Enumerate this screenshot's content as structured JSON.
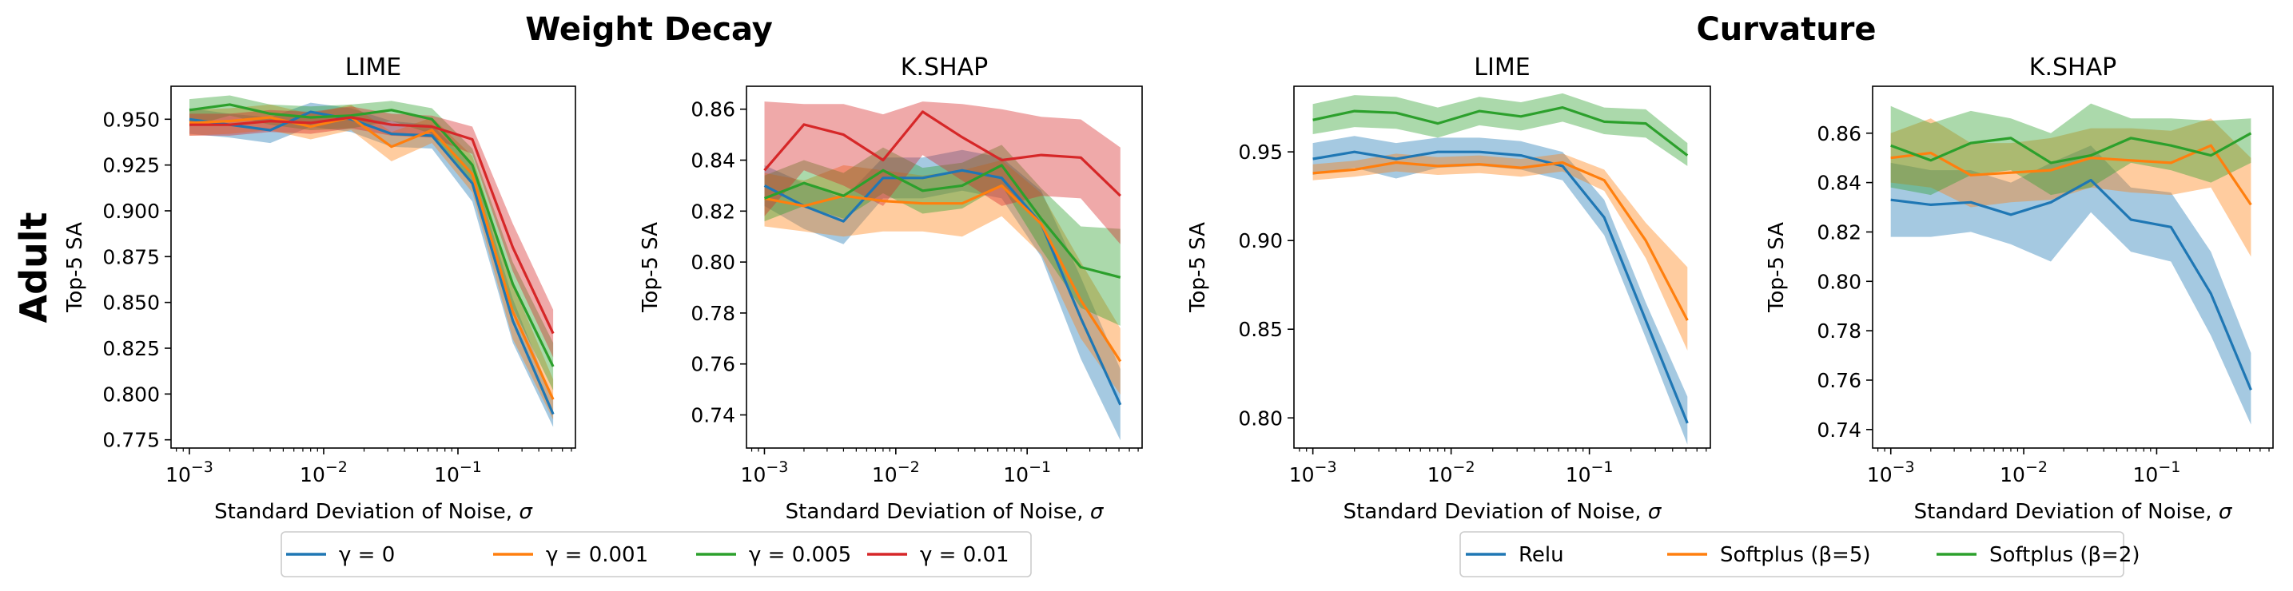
{
  "row_label": "Adult",
  "group_titles": [
    "Weight Decay",
    "Curvature"
  ],
  "legends": [
    {
      "entries": [
        {
          "label": "γ = 0",
          "color": "#1f77b4"
        },
        {
          "label": "γ = 0.001",
          "color": "#ff7f0e"
        },
        {
          "label": "γ = 0.005",
          "color": "#2ca02c"
        },
        {
          "label": "γ = 0.01",
          "color": "#d62728"
        }
      ]
    },
    {
      "entries": [
        {
          "label": "Relu",
          "color": "#1f77b4"
        },
        {
          "label": "Softplus (β=5)",
          "color": "#ff7f0e"
        },
        {
          "label": "Softplus (β=2)",
          "color": "#2ca02c"
        }
      ]
    }
  ],
  "chart_data": [
    {
      "type": "line",
      "group": "Weight Decay",
      "title": "LIME",
      "xlabel": "Standard Deviation of Noise, σ",
      "ylabel": "Top-5 SA",
      "xscale": "log",
      "xlim": [
        0.00073,
        0.75
      ],
      "ylim": [
        0.7705,
        0.968
      ],
      "x": [
        0.001,
        0.002,
        0.004,
        0.008,
        0.016,
        0.032,
        0.064,
        0.128,
        0.256,
        0.512
      ],
      "xticks": [
        0.001,
        0.01,
        0.1
      ],
      "xtick_labels": [
        "10−3",
        "10−2",
        "10−1"
      ],
      "yticks": [
        0.775,
        0.8,
        0.825,
        0.85,
        0.875,
        0.9,
        0.925,
        0.95
      ],
      "ytick_labels": [
        "0.775",
        "0.800",
        "0.825",
        "0.850",
        "0.875",
        "0.900",
        "0.925",
        "0.950"
      ],
      "series": [
        {
          "name": "γ = 0",
          "color": "#1f77b4",
          "values": [
            0.95,
            0.947,
            0.944,
            0.954,
            0.95,
            0.942,
            0.941,
            0.915,
            0.84,
            0.789
          ],
          "lower": [
            0.942,
            0.94,
            0.937,
            0.946,
            0.943,
            0.935,
            0.934,
            0.905,
            0.828,
            0.782
          ],
          "upper": [
            0.956,
            0.953,
            0.951,
            0.959,
            0.956,
            0.949,
            0.947,
            0.925,
            0.852,
            0.797
          ]
        },
        {
          "name": "γ = 0.001",
          "color": "#ff7f0e",
          "values": [
            0.948,
            0.949,
            0.951,
            0.946,
            0.951,
            0.935,
            0.944,
            0.92,
            0.845,
            0.797
          ],
          "lower": [
            0.941,
            0.942,
            0.944,
            0.939,
            0.944,
            0.927,
            0.937,
            0.91,
            0.83,
            0.786
          ],
          "upper": [
            0.955,
            0.956,
            0.958,
            0.953,
            0.958,
            0.943,
            0.951,
            0.93,
            0.86,
            0.808
          ]
        },
        {
          "name": "γ = 0.005",
          "color": "#2ca02c",
          "values": [
            0.955,
            0.958,
            0.953,
            0.951,
            0.952,
            0.955,
            0.95,
            0.925,
            0.86,
            0.815
          ],
          "lower": [
            0.946,
            0.952,
            0.947,
            0.944,
            0.945,
            0.949,
            0.942,
            0.915,
            0.847,
            0.802
          ],
          "upper": [
            0.961,
            0.963,
            0.958,
            0.957,
            0.958,
            0.96,
            0.956,
            0.934,
            0.872,
            0.828
          ]
        },
        {
          "name": "γ = 0.01",
          "color": "#d62728",
          "values": [
            0.947,
            0.947,
            0.949,
            0.948,
            0.951,
            0.947,
            0.946,
            0.939,
            0.88,
            0.833
          ],
          "lower": [
            0.941,
            0.941,
            0.943,
            0.942,
            0.945,
            0.941,
            0.94,
            0.931,
            0.867,
            0.82
          ],
          "upper": [
            0.953,
            0.953,
            0.955,
            0.954,
            0.957,
            0.953,
            0.952,
            0.946,
            0.893,
            0.846
          ]
        }
      ]
    },
    {
      "type": "line",
      "group": "Weight Decay",
      "title": "K.SHAP",
      "xlabel": "Standard Deviation of Noise, σ",
      "ylabel": "Top-5 SA",
      "xscale": "log",
      "xlim": [
        0.00073,
        0.75
      ],
      "ylim": [
        0.727,
        0.869
      ],
      "x": [
        0.001,
        0.002,
        0.004,
        0.008,
        0.016,
        0.032,
        0.064,
        0.128,
        0.256,
        0.512
      ],
      "xticks": [
        0.001,
        0.01,
        0.1
      ],
      "xtick_labels": [
        "10−3",
        "10−2",
        "10−1"
      ],
      "yticks": [
        0.74,
        0.76,
        0.78,
        0.8,
        0.82,
        0.84,
        0.86
      ],
      "ytick_labels": [
        "0.74",
        "0.76",
        "0.78",
        "0.80",
        "0.82",
        "0.84",
        "0.86"
      ],
      "series": [
        {
          "name": "γ = 0",
          "color": "#1f77b4",
          "values": [
            0.83,
            0.822,
            0.816,
            0.833,
            0.833,
            0.836,
            0.833,
            0.815,
            0.778,
            0.744
          ],
          "lower": [
            0.822,
            0.813,
            0.807,
            0.825,
            0.825,
            0.828,
            0.825,
            0.802,
            0.762,
            0.73
          ],
          "upper": [
            0.838,
            0.831,
            0.825,
            0.841,
            0.841,
            0.844,
            0.841,
            0.828,
            0.794,
            0.758
          ]
        },
        {
          "name": "γ = 0.001",
          "color": "#ff7f0e",
          "values": [
            0.825,
            0.822,
            0.826,
            0.824,
            0.823,
            0.823,
            0.83,
            0.815,
            0.785,
            0.761
          ],
          "lower": [
            0.814,
            0.812,
            0.81,
            0.812,
            0.812,
            0.81,
            0.818,
            0.803,
            0.77,
            0.748
          ],
          "upper": [
            0.835,
            0.832,
            0.838,
            0.836,
            0.834,
            0.836,
            0.84,
            0.827,
            0.8,
            0.774
          ]
        },
        {
          "name": "γ = 0.005",
          "color": "#2ca02c",
          "values": [
            0.825,
            0.831,
            0.826,
            0.836,
            0.828,
            0.83,
            0.838,
            0.817,
            0.798,
            0.794
          ],
          "lower": [
            0.816,
            0.822,
            0.817,
            0.827,
            0.819,
            0.821,
            0.83,
            0.805,
            0.782,
            0.775
          ],
          "upper": [
            0.834,
            0.84,
            0.835,
            0.845,
            0.837,
            0.839,
            0.846,
            0.829,
            0.814,
            0.813
          ]
        },
        {
          "name": "γ = 0.01",
          "color": "#d62728",
          "values": [
            0.836,
            0.854,
            0.85,
            0.84,
            0.859,
            0.849,
            0.84,
            0.842,
            0.841,
            0.826
          ],
          "lower": [
            0.818,
            0.836,
            0.83,
            0.822,
            0.842,
            0.832,
            0.822,
            0.826,
            0.825,
            0.807
          ],
          "upper": [
            0.863,
            0.862,
            0.862,
            0.858,
            0.863,
            0.862,
            0.86,
            0.857,
            0.856,
            0.845
          ]
        }
      ]
    },
    {
      "type": "line",
      "group": "Curvature",
      "title": "LIME",
      "xlabel": "Standard Deviation of Noise, σ",
      "ylabel": "Top-5 SA",
      "xscale": "log",
      "xlim": [
        0.00073,
        0.75
      ],
      "ylim": [
        0.783,
        0.987
      ],
      "x": [
        0.001,
        0.002,
        0.004,
        0.008,
        0.016,
        0.032,
        0.064,
        0.128,
        0.256,
        0.512
      ],
      "xticks": [
        0.001,
        0.01,
        0.1
      ],
      "xtick_labels": [
        "10−3",
        "10−2",
        "10−1"
      ],
      "yticks": [
        0.8,
        0.85,
        0.9,
        0.95
      ],
      "ytick_labels": [
        "0.80",
        "0.85",
        "0.90",
        "0.95"
      ],
      "series": [
        {
          "name": "Relu",
          "color": "#1f77b4",
          "values": [
            0.946,
            0.95,
            0.946,
            0.95,
            0.95,
            0.948,
            0.942,
            0.913,
            0.855,
            0.797
          ],
          "lower": [
            0.937,
            0.941,
            0.935,
            0.941,
            0.942,
            0.94,
            0.934,
            0.903,
            0.845,
            0.785
          ],
          "upper": [
            0.955,
            0.959,
            0.955,
            0.958,
            0.958,
            0.956,
            0.95,
            0.923,
            0.865,
            0.812
          ]
        },
        {
          "name": "Softplus (β=5)",
          "color": "#ff7f0e",
          "values": [
            0.938,
            0.94,
            0.944,
            0.942,
            0.943,
            0.941,
            0.944,
            0.934,
            0.9,
            0.855
          ],
          "lower": [
            0.934,
            0.936,
            0.939,
            0.937,
            0.938,
            0.936,
            0.939,
            0.928,
            0.89,
            0.838
          ],
          "upper": [
            0.943,
            0.945,
            0.949,
            0.947,
            0.948,
            0.946,
            0.949,
            0.94,
            0.91,
            0.885
          ]
        },
        {
          "name": "Softplus (β=2)",
          "color": "#2ca02c",
          "values": [
            0.968,
            0.973,
            0.972,
            0.966,
            0.973,
            0.97,
            0.975,
            0.967,
            0.966,
            0.948
          ],
          "lower": [
            0.96,
            0.964,
            0.963,
            0.958,
            0.965,
            0.962,
            0.967,
            0.96,
            0.958,
            0.942
          ],
          "upper": [
            0.977,
            0.982,
            0.981,
            0.975,
            0.981,
            0.978,
            0.983,
            0.975,
            0.974,
            0.955
          ]
        }
      ]
    },
    {
      "type": "line",
      "group": "Curvature",
      "title": "K.SHAP",
      "xlabel": "Standard Deviation of Noise, σ",
      "ylabel": "Top-5 SA",
      "xscale": "log",
      "xlim": [
        0.00073,
        0.75
      ],
      "ylim": [
        0.7325,
        0.879
      ],
      "x": [
        0.001,
        0.002,
        0.004,
        0.008,
        0.016,
        0.032,
        0.064,
        0.128,
        0.256,
        0.512
      ],
      "xticks": [
        0.001,
        0.01,
        0.1
      ],
      "xtick_labels": [
        "10−3",
        "10−2",
        "10−1"
      ],
      "yticks": [
        0.74,
        0.76,
        0.78,
        0.8,
        0.82,
        0.84,
        0.86
      ],
      "ytick_labels": [
        "0.74",
        "0.76",
        "0.78",
        "0.80",
        "0.82",
        "0.84",
        "0.86"
      ],
      "series": [
        {
          "name": "Relu",
          "color": "#1f77b4",
          "values": [
            0.833,
            0.831,
            0.832,
            0.827,
            0.832,
            0.841,
            0.825,
            0.822,
            0.795,
            0.756
          ],
          "lower": [
            0.818,
            0.818,
            0.82,
            0.815,
            0.808,
            0.828,
            0.812,
            0.808,
            0.778,
            0.742
          ],
          "upper": [
            0.848,
            0.845,
            0.845,
            0.84,
            0.848,
            0.855,
            0.838,
            0.836,
            0.812,
            0.771
          ]
        },
        {
          "name": "Softplus (β=5)",
          "color": "#ff7f0e",
          "values": [
            0.85,
            0.852,
            0.843,
            0.844,
            0.845,
            0.85,
            0.849,
            0.848,
            0.855,
            0.831
          ],
          "lower": [
            0.84,
            0.838,
            0.83,
            0.832,
            0.833,
            0.838,
            0.836,
            0.835,
            0.838,
            0.81
          ],
          "upper": [
            0.86,
            0.866,
            0.856,
            0.856,
            0.858,
            0.862,
            0.862,
            0.861,
            0.866,
            0.85
          ]
        },
        {
          "name": "Softplus (β=2)",
          "color": "#2ca02c",
          "values": [
            0.855,
            0.849,
            0.856,
            0.858,
            0.848,
            0.851,
            0.858,
            0.855,
            0.851,
            0.86
          ],
          "lower": [
            0.838,
            0.835,
            0.843,
            0.845,
            0.835,
            0.838,
            0.848,
            0.845,
            0.84,
            0.848
          ],
          "upper": [
            0.871,
            0.864,
            0.869,
            0.866,
            0.86,
            0.872,
            0.866,
            0.866,
            0.865,
            0.866
          ]
        }
      ]
    }
  ]
}
